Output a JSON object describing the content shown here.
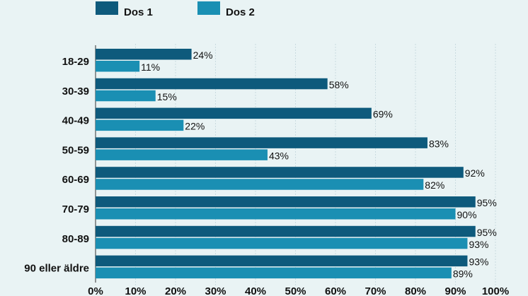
{
  "chart_data": {
    "type": "bar",
    "orientation": "horizontal",
    "categories": [
      "18-29",
      "30-39",
      "40-49",
      "50-59",
      "60-69",
      "70-79",
      "80-89",
      "90 eller äldre"
    ],
    "series": [
      {
        "name": "Dos 1",
        "color": "#0e5a7c",
        "values": [
          24,
          58,
          69,
          83,
          92,
          95,
          95,
          93
        ]
      },
      {
        "name": "Dos 2",
        "color": "#1a8fb3",
        "values": [
          11,
          15,
          22,
          43,
          82,
          90,
          93,
          89
        ]
      }
    ],
    "value_suffix": "%",
    "xlim": [
      0,
      100
    ],
    "xticks": [
      0,
      10,
      20,
      30,
      40,
      50,
      60,
      70,
      80,
      90,
      100
    ],
    "xtick_labels": [
      "0%",
      "10%",
      "20%",
      "30%",
      "40%",
      "50%",
      "60%",
      "70%",
      "80%",
      "90%",
      "100%"
    ],
    "grid": true,
    "legend_position": "top-left"
  }
}
